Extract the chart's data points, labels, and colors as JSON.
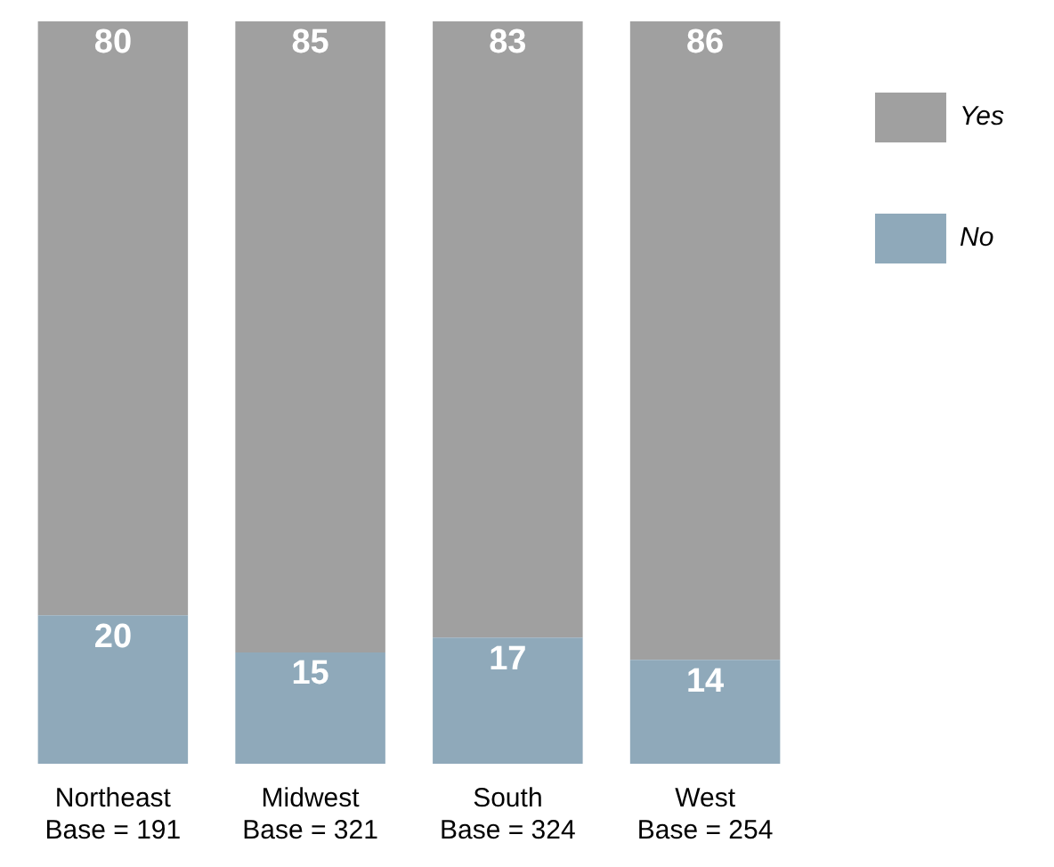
{
  "chart_data": {
    "type": "bar",
    "stacked": true,
    "categories": [
      "Northeast\nBase = 191",
      "Midwest\nBase = 321",
      "South\nBase = 324",
      "West\nBase = 254"
    ],
    "series": [
      {
        "name": "No",
        "color": "#8fa9ba",
        "values": [
          20,
          15,
          17,
          14
        ]
      },
      {
        "name": "Yes",
        "color": "#a0a0a0",
        "values": [
          80,
          85,
          83,
          86
        ]
      }
    ],
    "data_labels": true,
    "ylim": [
      0,
      100
    ],
    "legend": "top right",
    "grid": false,
    "tick_labels": "x"
  }
}
